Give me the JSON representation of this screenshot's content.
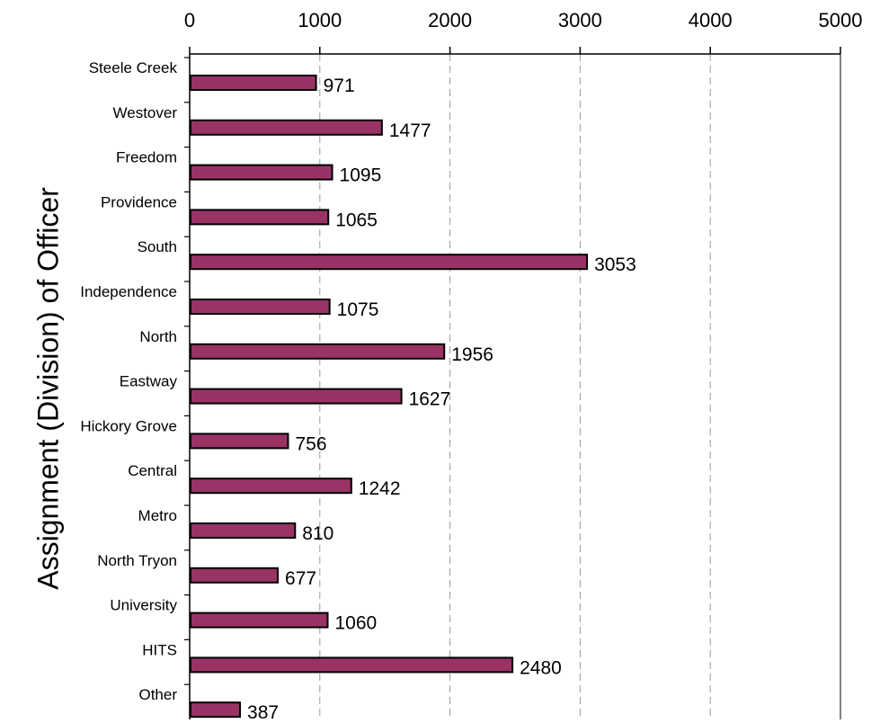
{
  "chart_data": {
    "type": "bar",
    "orientation": "horizontal",
    "ylabel": "Assignment (Division) of Officer",
    "xlabel": "",
    "xlim": [
      0,
      5000
    ],
    "x_ticks": [
      0,
      1000,
      2000,
      3000,
      4000,
      5000
    ],
    "x_axis_position": "top",
    "grid": "vertical dashed",
    "categories": [
      "Steele Creek",
      "Westover",
      "Freedom",
      "Providence",
      "South",
      "Independence",
      "North",
      "Eastway",
      "Hickory Grove",
      "Central",
      "Metro",
      "North Tryon",
      "University",
      "HITS",
      "Other"
    ],
    "values": [
      971,
      1477,
      1095,
      1065,
      3053,
      1075,
      1956,
      1627,
      756,
      1242,
      810,
      677,
      1060,
      2480,
      387
    ],
    "data_labels": true,
    "colors": {
      "bar_fill": "#993366",
      "bar_stroke": "#000000",
      "grid": "#999999",
      "axis": "#000000",
      "frame": "#808080"
    }
  }
}
